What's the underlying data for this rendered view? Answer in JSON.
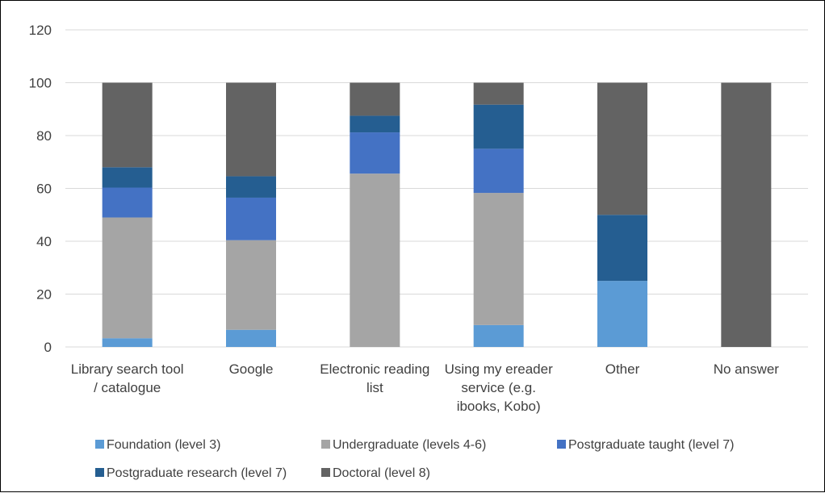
{
  "chart_data": {
    "type": "bar",
    "stacked": true,
    "ylim": [
      0,
      120
    ],
    "yticks": [
      0,
      20,
      40,
      60,
      80,
      100,
      120
    ],
    "grid": true,
    "legend_position": "bottom",
    "categories": [
      [
        "Library search tool",
        "/ catalogue"
      ],
      [
        "Google"
      ],
      [
        "Electronic reading",
        "list"
      ],
      [
        "Using my ereader",
        "service (e.g.",
        "ibooks, Kobo)"
      ],
      [
        "Other"
      ],
      [
        "No answer"
      ]
    ],
    "series": [
      {
        "name": "Foundation (level 3)",
        "color": "#5b9bd5",
        "values": [
          3.3,
          6.5,
          0,
          8.3,
          25,
          0
        ]
      },
      {
        "name": "Undergraduate (levels 4-6)",
        "color": "#a5a5a5",
        "values": [
          45.7,
          33.9,
          65.6,
          50,
          0,
          0
        ]
      },
      {
        "name": "Postgraduate taught (level 7)",
        "color": "#4472c4",
        "values": [
          11.3,
          16.1,
          15.6,
          16.7,
          0,
          0
        ]
      },
      {
        "name": "Postgraduate research (level 7)",
        "color": "#255e91",
        "values": [
          7.7,
          8.1,
          6.3,
          16.7,
          25,
          0
        ]
      },
      {
        "name": "Doctoral (level 8)",
        "color": "#636363",
        "values": [
          32,
          35.4,
          12.5,
          8.3,
          50,
          100
        ]
      }
    ]
  }
}
